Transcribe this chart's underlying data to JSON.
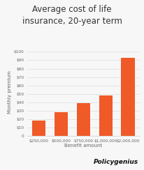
{
  "title": "Average cost of life\ninsurance, 20-year term",
  "categories": [
    "$250,000",
    "$500,000",
    "$750,000",
    "$1,000,000",
    "$2,000,000"
  ],
  "values": [
    18,
    28,
    39,
    48,
    93
  ],
  "bar_color": "#f05a28",
  "xlabel": "Benefit amount",
  "ylabel": "Monthly premium",
  "yticks": [
    0,
    10,
    20,
    30,
    40,
    50,
    60,
    70,
    80,
    90,
    100
  ],
  "ytick_labels": [
    "0",
    "$10",
    "$20",
    "$30",
    "$40",
    "$50",
    "$60",
    "$70",
    "$80",
    "$90",
    "$100"
  ],
  "ylim": [
    0,
    105
  ],
  "background_color": "#f7f7f7",
  "title_fontsize": 8.5,
  "axis_fontsize": 5,
  "tick_fontsize": 4.2,
  "logo_bold": "Policy",
  "logo_normal": "genius",
  "logo_fontsize": 6.5
}
